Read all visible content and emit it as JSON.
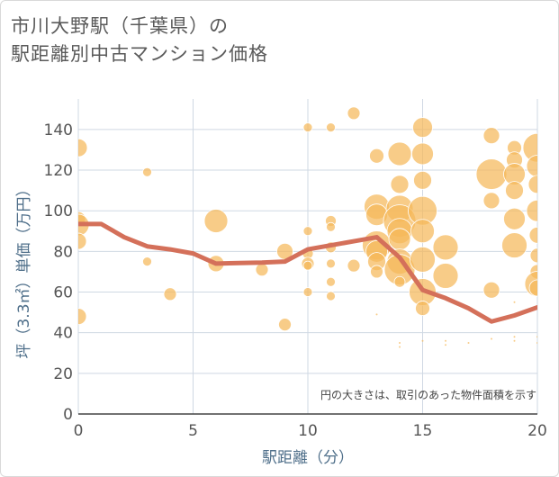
{
  "title_lines": [
    "市川大野駅（千葉県）の",
    "駅距離別中古マンション価格"
  ],
  "chart_data": {
    "type": "scatter",
    "xlabel": "駅距離（分）",
    "ylabel": "坪（3.3㎡）単価（万円）",
    "xlim": [
      0,
      20
    ],
    "ylim": [
      0,
      155
    ],
    "xticks": [
      0,
      5,
      10,
      15,
      20
    ],
    "yticks": [
      0,
      20,
      40,
      60,
      80,
      100,
      120,
      140
    ],
    "grid": true,
    "note": "円の大きさは、取引のあった物件面積を示す",
    "colors": {
      "bubble": "#f5b85a",
      "line": "#d4705a",
      "grid": "#cfd8e3"
    },
    "bubbles": [
      {
        "x": 0,
        "y": 131,
        "s": 10
      },
      {
        "x": 0,
        "y": 96,
        "s": 8
      },
      {
        "x": 0,
        "y": 93,
        "s": 12
      },
      {
        "x": 0,
        "y": 85,
        "s": 9
      },
      {
        "x": 0,
        "y": 48,
        "s": 9
      },
      {
        "x": 3,
        "y": 119,
        "s": 5
      },
      {
        "x": 3,
        "y": 75,
        "s": 5
      },
      {
        "x": 4,
        "y": 59,
        "s": 7
      },
      {
        "x": 6,
        "y": 95,
        "s": 13
      },
      {
        "x": 6,
        "y": 74,
        "s": 9
      },
      {
        "x": 8,
        "y": 71,
        "s": 7
      },
      {
        "x": 9,
        "y": 80,
        "s": 9
      },
      {
        "x": 9,
        "y": 44,
        "s": 7
      },
      {
        "x": 10,
        "y": 141,
        "s": 5
      },
      {
        "x": 10,
        "y": 90,
        "s": 5
      },
      {
        "x": 10,
        "y": 79,
        "s": 6
      },
      {
        "x": 10,
        "y": 74,
        "s": 7
      },
      {
        "x": 10,
        "y": 73,
        "s": 5
      },
      {
        "x": 10,
        "y": 60,
        "s": 5
      },
      {
        "x": 11,
        "y": 141,
        "s": 5
      },
      {
        "x": 11,
        "y": 95,
        "s": 6
      },
      {
        "x": 11,
        "y": 92,
        "s": 5
      },
      {
        "x": 11,
        "y": 82,
        "s": 6
      },
      {
        "x": 11,
        "y": 74,
        "s": 5
      },
      {
        "x": 11,
        "y": 65,
        "s": 5
      },
      {
        "x": 11,
        "y": 58,
        "s": 5
      },
      {
        "x": 12,
        "y": 148,
        "s": 7
      },
      {
        "x": 12,
        "y": 73,
        "s": 7
      },
      {
        "x": 13,
        "y": 127,
        "s": 8
      },
      {
        "x": 13,
        "y": 102,
        "s": 14
      },
      {
        "x": 13,
        "y": 98,
        "s": 12
      },
      {
        "x": 13,
        "y": 83,
        "s": 16
      },
      {
        "x": 13,
        "y": 80,
        "s": 12
      },
      {
        "x": 13,
        "y": 75,
        "s": 10
      },
      {
        "x": 13,
        "y": 70,
        "s": 7
      },
      {
        "x": 13,
        "y": 49,
        "s": 1
      },
      {
        "x": 14,
        "y": 128,
        "s": 13
      },
      {
        "x": 14,
        "y": 113,
        "s": 10
      },
      {
        "x": 14,
        "y": 101,
        "s": 15
      },
      {
        "x": 14,
        "y": 95,
        "s": 18
      },
      {
        "x": 14,
        "y": 90,
        "s": 14
      },
      {
        "x": 14,
        "y": 86,
        "s": 12
      },
      {
        "x": 14,
        "y": 75,
        "s": 14
      },
      {
        "x": 14,
        "y": 71,
        "s": 17
      },
      {
        "x": 14,
        "y": 65,
        "s": 6
      },
      {
        "x": 14,
        "y": 35,
        "s": 1
      },
      {
        "x": 14,
        "y": 33,
        "s": 1
      },
      {
        "x": 15,
        "y": 141,
        "s": 11
      },
      {
        "x": 15,
        "y": 128,
        "s": 12
      },
      {
        "x": 15,
        "y": 115,
        "s": 10
      },
      {
        "x": 15,
        "y": 100,
        "s": 16
      },
      {
        "x": 15,
        "y": 90,
        "s": 13
      },
      {
        "x": 15,
        "y": 76,
        "s": 14
      },
      {
        "x": 15,
        "y": 60,
        "s": 15
      },
      {
        "x": 15,
        "y": 52,
        "s": 8
      },
      {
        "x": 15,
        "y": 36,
        "s": 1
      },
      {
        "x": 16,
        "y": 82,
        "s": 14
      },
      {
        "x": 16,
        "y": 68,
        "s": 14
      },
      {
        "x": 16,
        "y": 36,
        "s": 1
      },
      {
        "x": 16,
        "y": 34,
        "s": 1
      },
      {
        "x": 17,
        "y": 35,
        "s": 1
      },
      {
        "x": 18,
        "y": 137,
        "s": 9
      },
      {
        "x": 18,
        "y": 118,
        "s": 17
      },
      {
        "x": 18,
        "y": 105,
        "s": 9
      },
      {
        "x": 18,
        "y": 61,
        "s": 9
      },
      {
        "x": 18,
        "y": 37,
        "s": 1
      },
      {
        "x": 19,
        "y": 131,
        "s": 8
      },
      {
        "x": 19,
        "y": 125,
        "s": 9
      },
      {
        "x": 19,
        "y": 118,
        "s": 12
      },
      {
        "x": 19,
        "y": 110,
        "s": 10
      },
      {
        "x": 19,
        "y": 96,
        "s": 12
      },
      {
        "x": 19,
        "y": 83,
        "s": 14
      },
      {
        "x": 19,
        "y": 55,
        "s": 1
      },
      {
        "x": 19,
        "y": 38,
        "s": 1
      },
      {
        "x": 19,
        "y": 36,
        "s": 1
      },
      {
        "x": 20,
        "y": 131,
        "s": 16
      },
      {
        "x": 20,
        "y": 122,
        "s": 12
      },
      {
        "x": 20,
        "y": 113,
        "s": 10
      },
      {
        "x": 20,
        "y": 100,
        "s": 12
      },
      {
        "x": 20,
        "y": 88,
        "s": 9
      },
      {
        "x": 20,
        "y": 78,
        "s": 8
      },
      {
        "x": 20,
        "y": 70,
        "s": 8
      },
      {
        "x": 20,
        "y": 64,
        "s": 14
      },
      {
        "x": 20,
        "y": 62,
        "s": 9
      },
      {
        "x": 20,
        "y": 38,
        "s": 1
      },
      {
        "x": 20,
        "y": 35,
        "s": 1
      }
    ],
    "trend": {
      "x": [
        0,
        1,
        2,
        3,
        4,
        5,
        6,
        7,
        8,
        9,
        10,
        11,
        12,
        13,
        14,
        15,
        16,
        17,
        18,
        19,
        20
      ],
      "y": [
        93.5,
        93.5,
        87,
        82.5,
        81,
        79,
        74,
        74.3,
        74.5,
        75,
        81,
        83,
        85,
        87,
        77,
        61,
        57,
        52,
        45.5,
        48.5,
        52.5
      ]
    }
  }
}
